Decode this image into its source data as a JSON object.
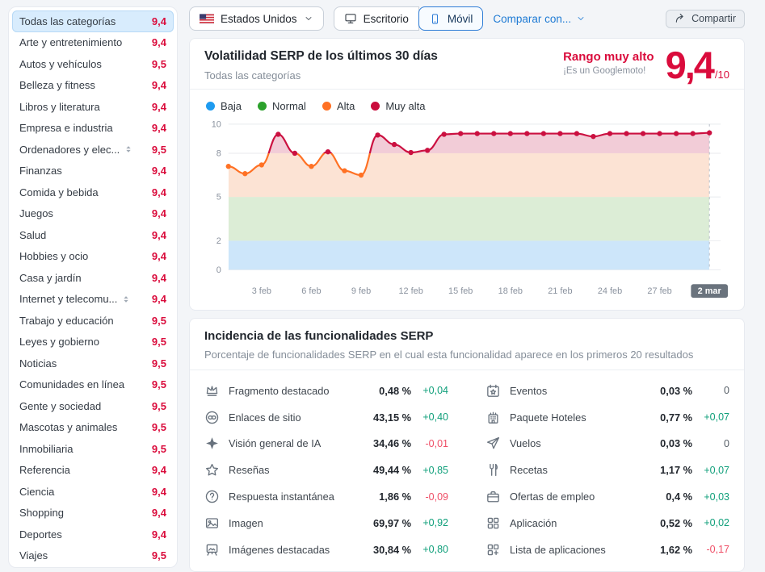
{
  "topbar": {
    "country": {
      "label": "Estados Unidos",
      "flag_icon": "us-flag-icon",
      "chevron_icon": "chevron-down-icon"
    },
    "device_toggle": [
      {
        "label": "Escritorio",
        "icon": "desktop-icon",
        "selected": false
      },
      {
        "label": "Móvil",
        "icon": "mobile-icon",
        "selected": true
      }
    ],
    "compare_label": "Comparar con...",
    "share_label": "Compartir",
    "share_icon": "share-icon"
  },
  "sidebar": {
    "items": [
      {
        "label": "Todas las categorías",
        "score": "9,4",
        "selected": true
      },
      {
        "label": "Arte y entretenimiento",
        "score": "9,4"
      },
      {
        "label": "Autos y vehículos",
        "score": "9,5"
      },
      {
        "label": "Belleza y fitness",
        "score": "9,4"
      },
      {
        "label": "Libros y literatura",
        "score": "9,4"
      },
      {
        "label": "Empresa e industria",
        "score": "9,4"
      },
      {
        "label": "Ordenadores y elec...",
        "score": "9,5",
        "icon": "sort-icon"
      },
      {
        "label": "Finanzas",
        "score": "9,4"
      },
      {
        "label": "Comida y bebida",
        "score": "9,4"
      },
      {
        "label": "Juegos",
        "score": "9,4"
      },
      {
        "label": "Salud",
        "score": "9,4"
      },
      {
        "label": "Hobbies y ocio",
        "score": "9,4"
      },
      {
        "label": "Casa y jardín",
        "score": "9,4"
      },
      {
        "label": "Internet y telecomu...",
        "score": "9,4",
        "icon": "sort-icon"
      },
      {
        "label": "Trabajo y educación",
        "score": "9,5"
      },
      {
        "label": "Leyes y gobierno",
        "score": "9,5"
      },
      {
        "label": "Noticias",
        "score": "9,5"
      },
      {
        "label": "Comunidades en línea",
        "score": "9,5"
      },
      {
        "label": "Gente y sociedad",
        "score": "9,5"
      },
      {
        "label": "Mascotas y animales",
        "score": "9,5"
      },
      {
        "label": "Inmobiliaria",
        "score": "9,5"
      },
      {
        "label": "Referencia",
        "score": "9,4"
      },
      {
        "label": "Ciencia",
        "score": "9,4"
      },
      {
        "label": "Shopping",
        "score": "9,4"
      },
      {
        "label": "Deportes",
        "score": "9,4"
      },
      {
        "label": "Viajes",
        "score": "9,5"
      }
    ]
  },
  "volatility_card": {
    "title": "Volatilidad SERP de los últimos 30 días",
    "subtitle": "Todas las categorías",
    "range_label": "Rango muy alto",
    "range_note": "¡Es un Googlemoto!",
    "score": "9,4",
    "score_suffix": "/10",
    "legend": [
      {
        "label": "Baja",
        "color": "#1e9bf0"
      },
      {
        "label": "Normal",
        "color": "#2ba12b"
      },
      {
        "label": "Alta",
        "color": "#ff7124"
      },
      {
        "label": "Muy alta",
        "color": "#ca0d3c"
      }
    ]
  },
  "chart_data": {
    "type": "line",
    "x": [
      "1 feb",
      "2 feb",
      "3 feb",
      "4 feb",
      "5 feb",
      "6 feb",
      "7 feb",
      "8 feb",
      "9 feb",
      "10 feb",
      "11 feb",
      "12 feb",
      "13 feb",
      "14 feb",
      "15 feb",
      "16 feb",
      "17 feb",
      "18 feb",
      "19 feb",
      "20 feb",
      "21 feb",
      "22 feb",
      "23 feb",
      "24 feb",
      "25 feb",
      "26 feb",
      "27 feb",
      "28 feb",
      "1 mar",
      "2 mar"
    ],
    "values": [
      7.1,
      6.6,
      7.2,
      9.3,
      8.0,
      7.1,
      8.1,
      6.8,
      6.5,
      9.25,
      8.6,
      8.05,
      8.2,
      9.3,
      9.35,
      9.35,
      9.35,
      9.35,
      9.35,
      9.35,
      9.35,
      9.35,
      9.15,
      9.35,
      9.35,
      9.35,
      9.35,
      9.35,
      9.35,
      9.4
    ],
    "ylim": [
      0,
      10
    ],
    "yticks": [
      0,
      2,
      5,
      8,
      10
    ],
    "xtick_indices": [
      2,
      5,
      8,
      11,
      14,
      17,
      20,
      23,
      26,
      29
    ],
    "xtick_labels": [
      "3 feb",
      "6 feb",
      "9 feb",
      "12 feb",
      "15 feb",
      "18 feb",
      "21 feb",
      "24 feb",
      "27 feb",
      "2 mar"
    ],
    "last_tick_highlighted": true,
    "threshold": 8,
    "line_color_low": "#ff7124",
    "line_color_high": "#cb1040",
    "bands": [
      {
        "from": 0,
        "to": 2,
        "color": "#cde6fa"
      },
      {
        "from": 2,
        "to": 5,
        "color": "#dcedd6"
      },
      {
        "from": 5,
        "to": 8,
        "color": "#fce3d4"
      },
      {
        "from": 8,
        "to": 10,
        "color": "#f2ccd7"
      }
    ],
    "grid": true,
    "legend_position": "top"
  },
  "features_card": {
    "title": "Incidencia de las funcionalidades SERP",
    "subtitle": "Porcentaje de funcionalidades SERP en el cual esta funcionalidad aparece en los primeros 20 resultados",
    "columns": [
      [
        {
          "icon": "crown-icon",
          "label": "Fragmento destacado",
          "value": "0,48 %",
          "change": "+0,04"
        },
        {
          "icon": "sitelinks-icon",
          "label": "Enlaces de sitio",
          "value": "43,15 %",
          "change": "+0,40"
        },
        {
          "icon": "ai-overview-icon",
          "label": "Visión general de IA",
          "value": "34,46 %",
          "change": "-0,01"
        },
        {
          "icon": "star-icon",
          "label": "Reseñas",
          "value": "49,44 %",
          "change": "+0,85"
        },
        {
          "icon": "instant-answer-icon",
          "label": "Respuesta instantánea",
          "value": "1,86 %",
          "change": "-0,09"
        },
        {
          "icon": "image-icon",
          "label": "Imagen",
          "value": "69,97 %",
          "change": "+0,92"
        },
        {
          "icon": "featured-images-icon",
          "label": "Imágenes destacadas",
          "value": "30,84 %",
          "change": "+0,80"
        }
      ],
      [
        {
          "icon": "events-icon",
          "label": "Eventos",
          "value": "0,03 %",
          "change": "0"
        },
        {
          "icon": "hotels-pack-icon",
          "label": "Paquete Hoteles",
          "value": "0,77 %",
          "change": "+0,07"
        },
        {
          "icon": "flights-icon",
          "label": "Vuelos",
          "value": "0,03 %",
          "change": "0"
        },
        {
          "icon": "recipes-icon",
          "label": "Recetas",
          "value": "1,17 %",
          "change": "+0,07"
        },
        {
          "icon": "jobs-icon",
          "label": "Ofertas de empleo",
          "value": "0,4 %",
          "change": "+0,03"
        },
        {
          "icon": "app-icon",
          "label": "Aplicación",
          "value": "0,52 %",
          "change": "+0,02"
        },
        {
          "icon": "app-list-icon",
          "label": "Lista de aplicaciones",
          "value": "1,62 %",
          "change": "-0,17"
        }
      ]
    ]
  },
  "colors": {
    "accent_red": "#da0c3c",
    "accent_blue": "#2e7cd6",
    "positive": "#0f9f7a",
    "negative": "#ef4e66",
    "selected_item_bg": "#d8ecfd",
    "date_badge_bg": "#6a737d"
  }
}
